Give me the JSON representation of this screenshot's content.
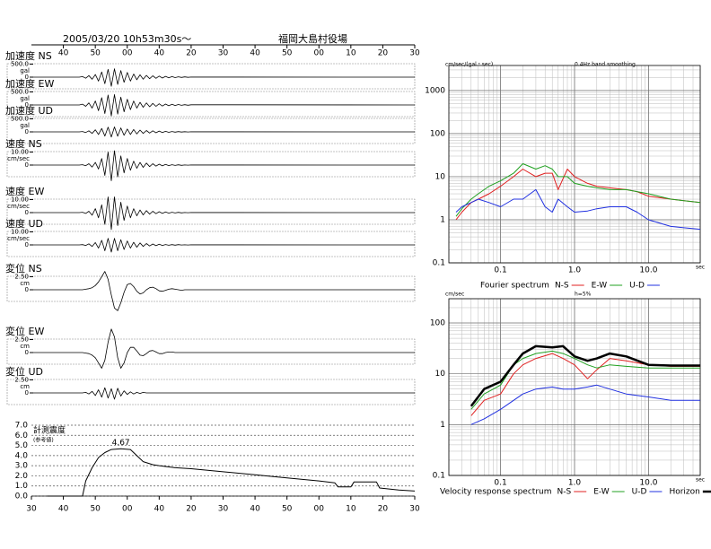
{
  "chart_data": [
    {
      "type": "waveforms",
      "title": "2005/03/20 10h53m30s～",
      "subtitle": "福岡大島村役場",
      "xlim": [
        0,
        120
      ],
      "xticks": [
        {
          "value": 10,
          "label": "40"
        },
        {
          "value": 20,
          "label": "50"
        },
        {
          "value": 30,
          "label": "00"
        },
        40,
        {
          "value": 50,
          "label": "20"
        },
        {
          "value": 60,
          "label": "30"
        },
        {
          "value": 70,
          "label": "40"
        },
        {
          "value": 80,
          "label": "50"
        },
        {
          "value": 90,
          "label": "00"
        },
        {
          "value": 100,
          "label": "10"
        },
        {
          "value": 110,
          "label": "20"
        },
        {
          "value": 120,
          "label": "30"
        }
      ],
      "x": [
        0,
        15,
        16,
        17,
        18,
        19,
        20,
        21,
        22,
        23,
        24,
        25,
        26,
        27,
        28,
        29,
        30,
        31,
        32,
        33,
        34,
        35,
        36,
        37,
        38,
        39,
        40,
        41,
        42,
        43,
        44,
        45,
        46,
        47,
        48,
        49,
        50,
        120
      ],
      "color": "#000000",
      "panels": [
        {
          "label": "加速度 NS",
          "unit": "gal",
          "ylim": [
            -550,
            550
          ],
          "yticks": [
            {
              "value": 500,
              "label": "500.0"
            },
            0
          ],
          "values": [
            0,
            0,
            20,
            -40,
            60,
            -80,
            100,
            -150,
            200,
            -250,
            300,
            -350,
            320,
            -280,
            250,
            -200,
            180,
            -150,
            120,
            -100,
            90,
            -80,
            70,
            -60,
            50,
            -45,
            40,
            -35,
            30,
            -25,
            20,
            -18,
            15,
            -12,
            10,
            -8,
            5,
            0
          ]
        },
        {
          "label": "加速度 EW",
          "unit": "gal",
          "ylim": [
            -550,
            550
          ],
          "yticks": [
            {
              "value": 500,
              "label": "500.0"
            },
            0
          ],
          "values": [
            0,
            0,
            30,
            -50,
            80,
            -120,
            150,
            -220,
            280,
            -330,
            380,
            -420,
            400,
            -350,
            300,
            -260,
            220,
            -180,
            150,
            -120,
            100,
            -90,
            80,
            -70,
            60,
            -50,
            45,
            -40,
            35,
            -30,
            25,
            -20,
            18,
            -15,
            12,
            -10,
            6,
            0
          ]
        },
        {
          "label": "加速度 UD",
          "unit": "gal",
          "ylim": [
            -550,
            550
          ],
          "yticks": [
            {
              "value": 500,
              "label": "500.0"
            },
            0
          ],
          "values": [
            0,
            0,
            15,
            -25,
            40,
            -60,
            80,
            -100,
            130,
            -160,
            180,
            -200,
            190,
            -170,
            150,
            -130,
            110,
            -100,
            90,
            -80,
            70,
            -60,
            50,
            -45,
            40,
            -35,
            30,
            -25,
            20,
            -18,
            15,
            -12,
            10,
            -8,
            6,
            -5,
            3,
            0
          ]
        },
        {
          "label": "速度 NS",
          "unit": "cm/sec",
          "ylim": [
            -11,
            11
          ],
          "yticks": [
            {
              "value": 10,
              "label": "10.00"
            },
            0
          ],
          "values": [
            0,
            0,
            0.3,
            -0.5,
            1,
            -1.5,
            2,
            -3,
            5,
            -8,
            10,
            -12,
            11,
            -9,
            7,
            -6,
            5,
            -4,
            3,
            -2.5,
            2,
            -1.8,
            1.5,
            -1.2,
            1,
            -0.8,
            0.7,
            -0.6,
            0.5,
            -0.4,
            0.3,
            -0.3,
            0.2,
            -0.2,
            0.1,
            -0.1,
            0.1,
            0
          ]
        },
        {
          "label": "速度 EW",
          "unit": "cm/sec",
          "ylim": [
            -11,
            11
          ],
          "yticks": [
            {
              "value": 10,
              "label": "10.00"
            },
            0
          ],
          "values": [
            0,
            0,
            0.3,
            -0.6,
            1,
            -2,
            3,
            -4,
            6,
            -9,
            12,
            -13,
            12,
            -10,
            8,
            -6,
            5,
            -4,
            3,
            -2.5,
            2,
            -1.8,
            1.5,
            -1.2,
            1,
            -0.8,
            0.7,
            -0.6,
            0.5,
            -0.4,
            0.3,
            -0.3,
            0.2,
            -0.2,
            0.1,
            -0.1,
            0.1,
            0
          ]
        },
        {
          "label": "速度 UD",
          "unit": "cm/sec",
          "ylim": [
            -11,
            11
          ],
          "yticks": [
            {
              "value": 10,
              "label": "10.00"
            },
            0
          ],
          "values": [
            0,
            0,
            0.2,
            -0.4,
            0.8,
            -1.2,
            1.8,
            -2.5,
            3.5,
            -4.5,
            5,
            -5.5,
            5,
            -4.5,
            4,
            -3.5,
            3,
            -2.5,
            2,
            -1.8,
            1.5,
            -1.2,
            1,
            -0.8,
            0.7,
            -0.6,
            0.5,
            -0.4,
            0.3,
            -0.3,
            0.2,
            -0.2,
            0.2,
            -0.1,
            0.1,
            -0.1,
            0.1,
            0
          ]
        },
        {
          "label": "変位 NS",
          "unit": "cm",
          "ylim": [
            -2.75,
            2.75
          ],
          "yticks": [
            {
              "value": 2.5,
              "label": "2.50"
            },
            0
          ],
          "values": [
            0,
            0,
            0,
            0.1,
            0.2,
            0.4,
            0.8,
            1.5,
            2.5,
            3.5,
            2,
            -1,
            -3.5,
            -4,
            -2.5,
            -0.5,
            1,
            1.2,
            0.6,
            -0.3,
            -0.8,
            -0.6,
            0,
            0.4,
            0.5,
            0.2,
            -0.2,
            -0.3,
            -0.1,
            0.1,
            0.2,
            0.1,
            0,
            -0.1,
            0,
            0,
            0,
            0
          ]
        },
        {
          "label": "変位 EW",
          "unit": "cm",
          "ylim": [
            -2.75,
            2.75
          ],
          "yticks": [
            {
              "value": 2.5,
              "label": "2.50"
            },
            0
          ],
          "values": [
            0,
            0,
            0,
            -0.1,
            -0.2,
            -0.5,
            -1,
            -2,
            -3,
            -1.5,
            2,
            4.5,
            3,
            -1,
            -3,
            -2,
            0,
            1,
            1,
            0.3,
            -0.5,
            -0.6,
            -0.2,
            0.3,
            0.4,
            0.1,
            -0.2,
            -0.2,
            0,
            0.1,
            0.1,
            0,
            0,
            0,
            0,
            0,
            0,
            0
          ]
        },
        {
          "label": "変位 UD",
          "unit": "cm",
          "ylim": [
            -2.75,
            2.75
          ],
          "yticks": [
            {
              "value": 2.5,
              "label": "2.50"
            },
            0
          ],
          "values": [
            0,
            0,
            0,
            0.1,
            -0.2,
            0.3,
            -0.5,
            0.6,
            -0.8,
            1,
            -1,
            0.8,
            -1.2,
            0.9,
            -0.6,
            0.4,
            -0.3,
            0.2,
            -0.2,
            0.1,
            -0.1,
            0.1,
            0,
            0,
            0,
            0,
            0,
            0,
            0,
            0,
            0,
            0,
            0,
            0,
            0,
            0,
            0,
            0
          ]
        }
      ]
    },
    {
      "type": "line",
      "title": "計測震度",
      "subtitle": "(参考値)",
      "xlim": [
        0,
        120
      ],
      "xticks": [
        {
          "value": 0,
          "label": "30"
        },
        {
          "value": 10,
          "label": "40"
        },
        {
          "value": 20,
          "label": "50"
        },
        {
          "value": 30,
          "label": "00"
        },
        40,
        {
          "value": 50,
          "label": "20"
        },
        {
          "value": 60,
          "label": "30"
        },
        {
          "value": 70,
          "label": "40"
        },
        {
          "value": 80,
          "label": "50"
        },
        {
          "value": 90,
          "label": "00"
        },
        {
          "value": 100,
          "label": "10"
        },
        {
          "value": 110,
          "label": "20"
        },
        {
          "value": 120,
          "label": "30"
        }
      ],
      "ylim": [
        0,
        7
      ],
      "yticks": [
        {
          "value": 0,
          "label": "0.0"
        },
        {
          "value": 1,
          "label": "1.0"
        },
        {
          "value": 2,
          "label": "2.0"
        },
        {
          "value": 3,
          "label": "3.0"
        },
        {
          "value": 4,
          "label": "4.0"
        },
        {
          "value": 5,
          "label": "5.0"
        },
        {
          "value": 6,
          "label": "6.0"
        },
        {
          "value": 7,
          "label": "7.0"
        }
      ],
      "grid": true,
      "grid_style": "dashed",
      "x": [
        5,
        16,
        17,
        19,
        21,
        23,
        25,
        28,
        31,
        33,
        35,
        38,
        40,
        45,
        50,
        60,
        70,
        80,
        90,
        95,
        96,
        100,
        101,
        108,
        109,
        115,
        120
      ],
      "series": [
        {
          "color": "#000000",
          "values": [
            0,
            0,
            1.5,
            2.8,
            3.8,
            4.3,
            4.6,
            4.67,
            4.6,
            4.0,
            3.4,
            3.1,
            3.0,
            2.8,
            2.7,
            2.4,
            2.1,
            1.8,
            1.5,
            1.3,
            0.9,
            0.9,
            1.4,
            1.4,
            0.8,
            0.6,
            0.5
          ]
        }
      ],
      "peak": {
        "x": 28,
        "value": 4.67
      }
    },
    {
      "type": "line",
      "title": "Fourier spectrum",
      "subtitle": "0.4Hz band smoothing",
      "ylabel": "cm/sec/(gal・sec)",
      "xlabel": "sec",
      "xscale": "log",
      "yscale": "log",
      "grid": true,
      "minor_grid": true,
      "xlim": [
        0.02,
        50
      ],
      "xticks": [
        0.1,
        {
          "value": 1,
          "label": "1.0"
        },
        {
          "value": 10,
          "label": "10.0"
        }
      ],
      "ylim": [
        0.1,
        3800
      ],
      "yticks": [
        0.1,
        1,
        10,
        100,
        1000
      ],
      "x": [
        0.025,
        0.03,
        0.04,
        0.05,
        0.07,
        0.1,
        0.15,
        0.2,
        0.3,
        0.4,
        0.5,
        0.6,
        0.8,
        1,
        1.5,
        2,
        3,
        5,
        7,
        10,
        20,
        50
      ],
      "series": [
        {
          "name": "N-S",
          "color": "#e02020",
          "values": [
            1,
            1.5,
            2.5,
            3,
            4,
            6,
            10,
            15,
            10,
            12,
            12,
            5,
            15,
            10,
            7,
            6,
            5.5,
            5,
            4.5,
            3.5,
            3,
            2.5
          ]
        },
        {
          "name": "E-W",
          "color": "#20a020",
          "values": [
            1.2,
            1.8,
            3,
            4,
            6,
            8,
            12,
            20,
            15,
            18,
            15,
            10,
            10,
            7,
            6,
            5.5,
            5,
            5,
            4.5,
            4,
            3,
            2.5
          ]
        },
        {
          "name": "U-D",
          "color": "#2030e0",
          "values": [
            1.5,
            2,
            2.5,
            3,
            2.5,
            2,
            3,
            3,
            5,
            2,
            1.5,
            3,
            2,
            1.5,
            1.6,
            1.8,
            2,
            2,
            1.5,
            1,
            0.7,
            0.6
          ]
        }
      ]
    },
    {
      "type": "line",
      "title": "Velocity response spectrum",
      "subtitle": "h=5%",
      "ylabel": "cm/sec",
      "xlabel": "sec",
      "xscale": "log",
      "yscale": "log",
      "grid": true,
      "minor_grid": true,
      "xlim": [
        0.02,
        50
      ],
      "xticks": [
        0.1,
        {
          "value": 1,
          "label": "1.0"
        },
        {
          "value": 10,
          "label": "10.0"
        }
      ],
      "ylim": [
        0.1,
        300
      ],
      "yticks": [
        0.1,
        1,
        10,
        100
      ],
      "x": [
        0.04,
        0.06,
        0.1,
        0.15,
        0.2,
        0.3,
        0.5,
        0.7,
        1,
        1.5,
        2,
        3,
        5,
        10,
        20,
        50
      ],
      "series": [
        {
          "name": "N-S",
          "color": "#e02020",
          "values": [
            1.5,
            3,
            4,
            10,
            15,
            20,
            25,
            20,
            15,
            8,
            12,
            20,
            18,
            15,
            14,
            14
          ]
        },
        {
          "name": "E-W",
          "color": "#20a020",
          "values": [
            2,
            4,
            6,
            15,
            20,
            25,
            28,
            25,
            20,
            15,
            13,
            15,
            14,
            13,
            13,
            13
          ]
        },
        {
          "name": "U-D",
          "color": "#2030e0",
          "values": [
            1,
            1.3,
            2,
            3,
            4,
            5,
            5.5,
            5,
            5,
            5.5,
            6,
            5,
            4,
            3.5,
            3,
            3
          ]
        },
        {
          "name": "Horizon",
          "color": "#000000",
          "line_width": 2.5,
          "values": [
            2.3,
            5,
            7,
            15,
            25,
            35,
            33,
            35,
            22,
            18,
            20,
            25,
            22,
            15,
            14.5,
            14.5
          ]
        }
      ]
    }
  ]
}
